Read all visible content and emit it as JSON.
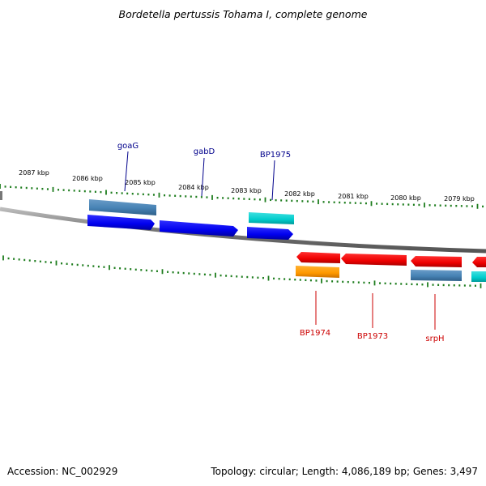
{
  "title": "Bordetella pertussis Tohama I, complete genome",
  "footer": {
    "accession": "Accession: NC_002929",
    "summary": "Topology: circular; Length: 4,086,189 bp; Genes: 3,497"
  },
  "colors": {
    "backbone": "#8a8a8a",
    "tick": "#1e7d1e",
    "plus_label": "#00008b",
    "minus_label": "#cc0000",
    "gene_blue": "#0000ee",
    "gene_steel": "#4682b4",
    "gene_cyan": "#00cccc",
    "gene_red": "#ee0000",
    "gene_orange": "#ff9900"
  },
  "scale_labels": [
    "2087 kbp",
    "2086 kbp",
    "2085 kbp",
    "2084 kbp",
    "2083 kbp",
    "2082 kbp",
    "2081 kbp",
    "2080 kbp",
    "2079 kbp"
  ],
  "gene_labels": [
    {
      "text": "goaG",
      "strand": "plus"
    },
    {
      "text": "gabD",
      "strand": "plus"
    },
    {
      "text": "BP1975",
      "strand": "plus"
    },
    {
      "text": "BP1974",
      "strand": "minus"
    },
    {
      "text": "BP1973",
      "strand": "minus"
    },
    {
      "text": "srpH",
      "strand": "minus"
    }
  ]
}
